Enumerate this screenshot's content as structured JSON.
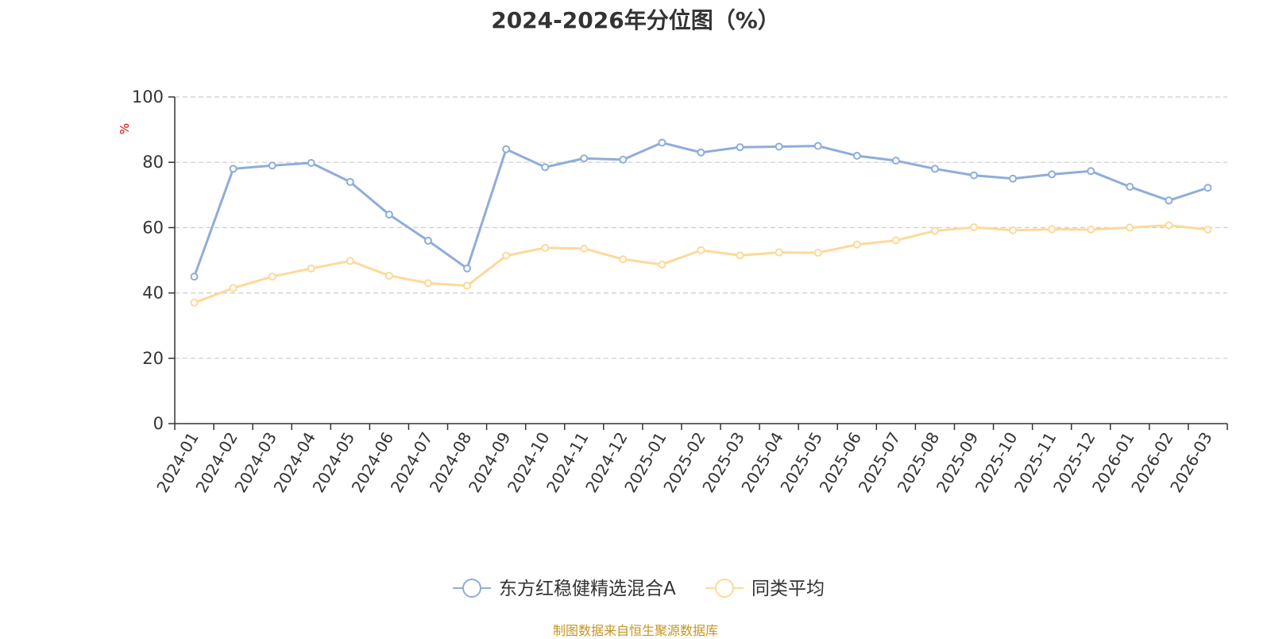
{
  "chart_data": {
    "type": "line",
    "title": "2024-2026年分位图（%）",
    "ylabel": "%",
    "xlabel": "",
    "ylim": [
      0,
      100
    ],
    "yticks": [
      0,
      20,
      40,
      60,
      80,
      100
    ],
    "grid": true,
    "legend_position": "bottom-center",
    "categories": [
      "2024-01",
      "2024-02",
      "2024-03",
      "2024-04",
      "2024-05",
      "2024-06",
      "2024-07",
      "2024-08",
      "2024-09",
      "2024-10",
      "2024-11",
      "2024-12",
      "2025-01",
      "2025-02",
      "2025-03",
      "2025-04",
      "2025-05",
      "2025-06",
      "2025-07",
      "2025-08",
      "2025-09",
      "2025-10",
      "2025-11",
      "2025-12",
      "2026-01",
      "2026-02",
      "2026-03"
    ],
    "series": [
      {
        "name": "东方红稳健精选混合A",
        "color": "#8eaddb",
        "values": [
          45,
          78,
          79,
          79.8,
          74,
          64,
          56,
          47.5,
          84,
          78.5,
          81.2,
          80.8,
          86,
          83,
          84.6,
          84.8,
          85,
          82,
          80.5,
          78,
          76,
          75,
          76.3,
          77.3,
          72.5,
          68.3,
          72.2
        ]
      },
      {
        "name": "同类平均",
        "color": "#fdd99a",
        "values": [
          37,
          41.5,
          45,
          47.5,
          49.8,
          45.3,
          43,
          42.2,
          51.4,
          53.8,
          53.6,
          50.3,
          48.7,
          53.1,
          51.5,
          52.4,
          52.3,
          54.8,
          56.1,
          59,
          60.1,
          59.2,
          59.5,
          59.4,
          60,
          60.7,
          59.4
        ]
      }
    ]
  },
  "source_text": "制图数据来自恒生聚源数据库"
}
